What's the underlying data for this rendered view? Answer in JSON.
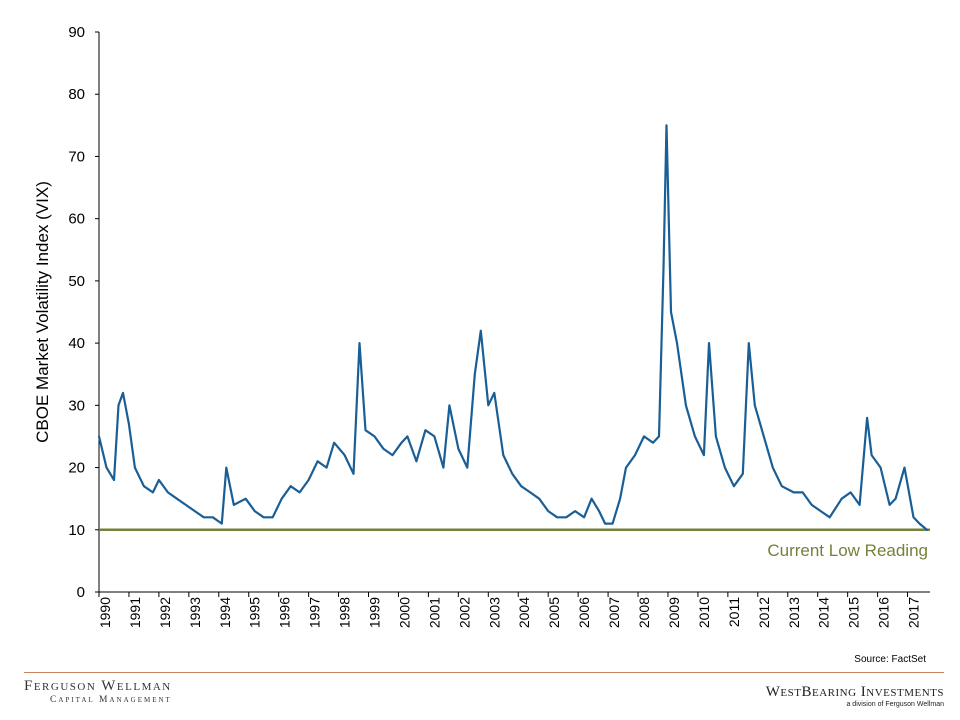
{
  "colors": {
    "series": "#1a5e96",
    "reference": "#77803a",
    "rule": "#c9825b"
  },
  "chart_data": {
    "type": "line",
    "title": "",
    "ylabel": "CBOE Market Volatility Index (VIX)",
    "xlabel": "",
    "ylim": [
      0,
      90
    ],
    "xlim": [
      1990,
      2017.75
    ],
    "y_ticks": [
      "0",
      "10",
      "20",
      "30",
      "40",
      "50",
      "60",
      "70",
      "80",
      "90"
    ],
    "x_ticks": [
      "1990",
      "1991",
      "1992",
      "1993",
      "1994",
      "1995",
      "1996",
      "1997",
      "1998",
      "1999",
      "2000",
      "2001",
      "2002",
      "2003",
      "2004",
      "2005",
      "2006",
      "2007",
      "2008",
      "2009",
      "2010",
      "2011",
      "2012",
      "2013",
      "2014",
      "2015",
      "2016",
      "2017"
    ],
    "grid": false,
    "series": [
      {
        "x": [
          1990.0,
          1990.25,
          1990.5,
          1990.65,
          1990.8,
          1991.0,
          1991.2,
          1991.5,
          1991.8,
          1992.0,
          1992.3,
          1992.6,
          1992.9,
          1993.2,
          1993.5,
          1993.8,
          1994.1,
          1994.25,
          1994.5,
          1994.9,
          1995.2,
          1995.5,
          1995.8,
          1996.1,
          1996.4,
          1996.7,
          1997.0,
          1997.3,
          1997.6,
          1997.85,
          1998.2,
          1998.5,
          1998.7,
          1998.9,
          1999.2,
          1999.5,
          1999.8,
          2000.1,
          2000.3,
          2000.6,
          2000.9,
          2001.2,
          2001.5,
          2001.7,
          2002.0,
          2002.3,
          2002.55,
          2002.75,
          2003.0,
          2003.2,
          2003.5,
          2003.8,
          2004.1,
          2004.4,
          2004.7,
          2005.0,
          2005.3,
          2005.6,
          2005.9,
          2006.2,
          2006.45,
          2006.7,
          2006.9,
          2007.15,
          2007.4,
          2007.6,
          2007.9,
          2008.2,
          2008.5,
          2008.7,
          2008.85,
          2008.95,
          2009.1,
          2009.3,
          2009.6,
          2009.9,
          2010.2,
          2010.37,
          2010.6,
          2010.9,
          2011.2,
          2011.5,
          2011.7,
          2011.9,
          2012.2,
          2012.5,
          2012.8,
          2013.2,
          2013.5,
          2013.8,
          2014.1,
          2014.4,
          2014.8,
          2015.1,
          2015.4,
          2015.65,
          2015.8,
          2016.1,
          2016.4,
          2016.6,
          2016.9,
          2017.2,
          2017.4,
          2017.65
        ],
        "y": [
          25,
          20,
          18,
          30,
          32,
          27,
          20,
          17,
          16,
          18,
          16,
          15,
          14,
          13,
          12,
          12,
          11,
          20,
          14,
          15,
          13,
          12,
          12,
          15,
          17,
          16,
          18,
          21,
          20,
          24,
          22,
          19,
          40,
          26,
          25,
          23,
          22,
          24,
          25,
          21,
          26,
          25,
          20,
          30,
          23,
          20,
          35,
          42,
          30,
          32,
          22,
          19,
          17,
          16,
          15,
          13,
          12,
          12,
          13,
          12,
          15,
          13,
          11,
          11,
          15,
          20,
          22,
          25,
          24,
          25,
          52,
          75,
          45,
          40,
          30,
          25,
          22,
          40,
          25,
          20,
          17,
          19,
          40,
          30,
          25,
          20,
          17,
          16,
          16,
          14,
          13,
          12,
          15,
          16,
          14,
          28,
          22,
          20,
          14,
          15,
          20,
          12,
          11,
          10
        ]
      }
    ],
    "reference_line": {
      "value": 10,
      "label": "Current Low Reading"
    }
  },
  "footer": {
    "source": "Source: FactSet",
    "left_logo_line1": "Ferguson Wellman",
    "left_logo_line2": "Capital Management",
    "right_logo_line1": "WestBearing Investments",
    "right_logo_line2": "a division of Ferguson Wellman"
  }
}
